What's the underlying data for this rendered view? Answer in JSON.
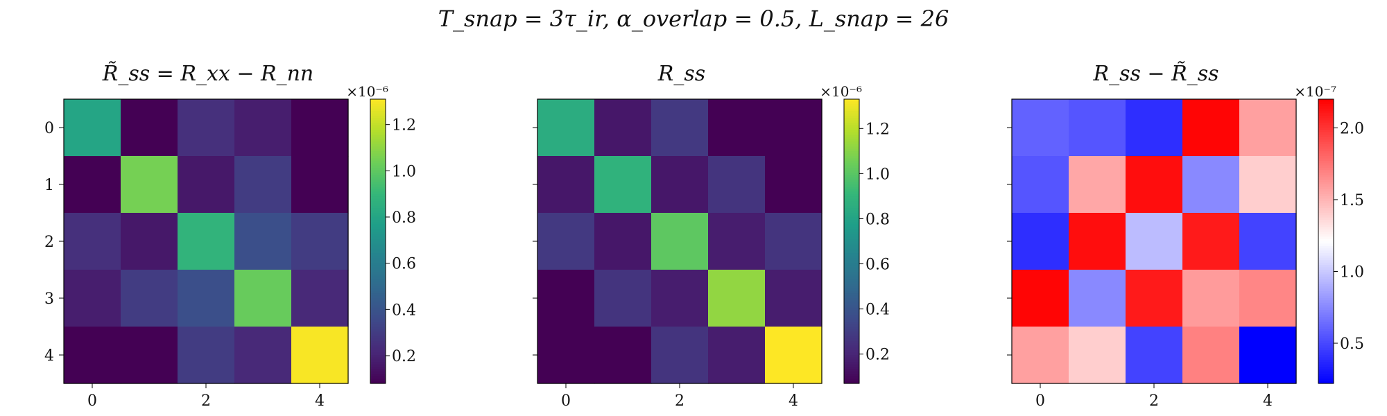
{
  "figure": {
    "suptitle": "T_snap = 3τ_ir,   α_overlap = 0.5,   L_snap = 26"
  },
  "colors": {
    "viridis": [
      "#440154",
      "#482878",
      "#3e4989",
      "#31688e",
      "#26828e",
      "#1f9e89",
      "#35b779",
      "#6ece58",
      "#b5de2b",
      "#fde725"
    ],
    "bwr": [
      "#0000ff",
      "#ffffff",
      "#ff0000"
    ]
  },
  "chart_data": [
    {
      "type": "heatmap",
      "title": "R̃_ss = R_xx − R_nn",
      "x_ticks": [
        "0",
        "2",
        "4"
      ],
      "y_ticks": [
        "0",
        "1",
        "2",
        "3",
        "4"
      ],
      "matrix": [
        [
          0.8,
          0.07,
          0.25,
          0.18,
          0.08
        ],
        [
          0.07,
          1.05,
          0.16,
          0.3,
          0.08
        ],
        [
          0.25,
          0.16,
          0.88,
          0.38,
          0.3
        ],
        [
          0.18,
          0.3,
          0.38,
          1.02,
          0.22
        ],
        [
          0.08,
          0.08,
          0.3,
          0.22,
          1.3
        ]
      ],
      "colormap": "viridis",
      "vmin": 0.08,
      "vmax": 1.31,
      "colorbar": {
        "ticks": [
          "0.2",
          "0.4",
          "0.6",
          "0.8",
          "1.0",
          "1.2"
        ],
        "tick_values": [
          0.2,
          0.4,
          0.6,
          0.8,
          1.0,
          1.2
        ],
        "multiplier": "×10⁻⁶"
      }
    },
    {
      "type": "heatmap",
      "title": "R_ss",
      "x_ticks": [
        "0",
        "2",
        "4"
      ],
      "y_ticks": [
        "0",
        "1",
        "2",
        "3",
        "4"
      ],
      "matrix": [
        [
          0.85,
          0.15,
          0.28,
          0.07,
          0.07
        ],
        [
          0.15,
          0.88,
          0.15,
          0.26,
          0.07
        ],
        [
          0.28,
          0.15,
          1.01,
          0.17,
          0.26
        ],
        [
          0.07,
          0.26,
          0.17,
          1.12,
          0.17
        ],
        [
          0.07,
          0.07,
          0.26,
          0.17,
          1.33
        ]
      ],
      "colormap": "viridis",
      "vmin": 0.07,
      "vmax": 1.33,
      "colorbar": {
        "ticks": [
          "0.2",
          "0.4",
          "0.6",
          "0.8",
          "1.0",
          "1.2"
        ],
        "tick_values": [
          0.2,
          0.4,
          0.6,
          0.8,
          1.0,
          1.2
        ],
        "multiplier": "×10⁻⁶"
      }
    },
    {
      "type": "heatmap",
      "title": "R_ss − R̃_ss",
      "x_ticks": [
        "0",
        "2",
        "4"
      ],
      "y_ticks": [
        "0",
        "1",
        "2",
        "3",
        "4"
      ],
      "matrix": [
        [
          0.6,
          0.55,
          0.4,
          2.18,
          1.58
        ],
        [
          0.55,
          1.55,
          2.15,
          0.75,
          1.4
        ],
        [
          0.4,
          2.15,
          0.95,
          2.1,
          0.48
        ],
        [
          2.18,
          0.75,
          2.1,
          1.6,
          1.68
        ],
        [
          1.58,
          1.4,
          0.48,
          1.7,
          0.22
        ]
      ],
      "colormap": "bwr",
      "vmin": 0.22,
      "vmax": 2.2,
      "colorbar": {
        "ticks": [
          "0.5",
          "1.0",
          "1.5",
          "2.0"
        ],
        "tick_values": [
          0.5,
          1.0,
          1.5,
          2.0
        ],
        "multiplier": "×10⁻⁷"
      }
    }
  ]
}
